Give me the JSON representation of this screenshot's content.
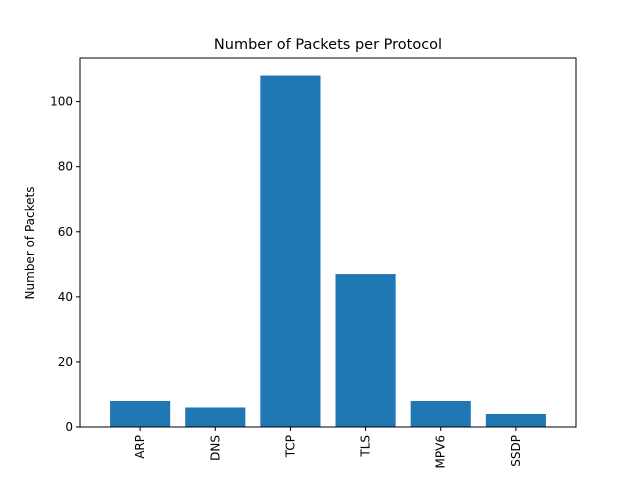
{
  "chart_data": {
    "type": "bar",
    "title": "Number of Packets per Protocol",
    "xlabel": "",
    "ylabel": "Number of Packets",
    "categories": [
      "ARP",
      "DNS",
      "TCP",
      "TLS",
      "MPV6",
      "SSDP"
    ],
    "values": [
      8,
      6,
      108,
      47,
      8,
      4
    ],
    "ylim": [
      0,
      113.4
    ],
    "yticks": [
      0,
      20,
      40,
      60,
      80,
      100
    ],
    "x_tick_rotation": 90,
    "grid": false,
    "legend": "none",
    "bar_color": "#1f77b4"
  }
}
